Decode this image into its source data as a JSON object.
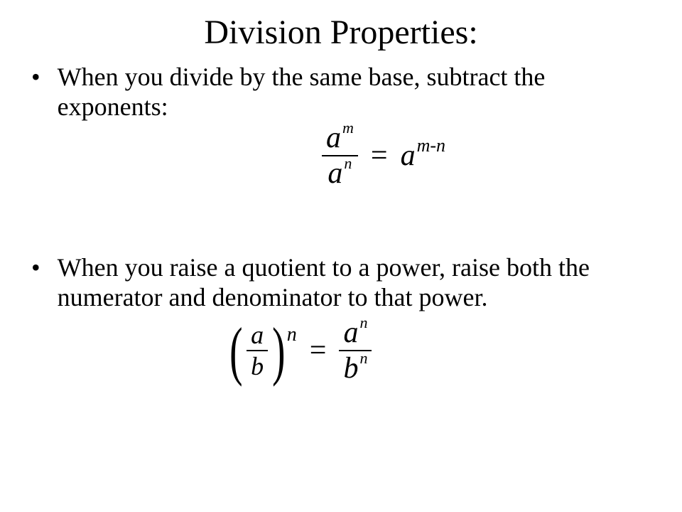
{
  "title": "Division Properties:",
  "bullets": [
    {
      "text": "When you divide by the same base, subtract the exponents:"
    },
    {
      "text": "When you raise a quotient to a power, raise both the numerator and denominator to that power."
    }
  ],
  "formula1": {
    "frac_num_base": "a",
    "frac_num_exp": "m",
    "frac_den_base": "a",
    "frac_den_exp": "n",
    "rhs_base": "a",
    "rhs_exp": "m-n",
    "equals": "="
  },
  "formula2": {
    "lhs_num": "a",
    "lhs_den": "b",
    "lhs_exp": "n",
    "equals": "=",
    "rhs_num_base": "a",
    "rhs_num_exp": "n",
    "rhs_den_base": "b",
    "rhs_den_exp": "n"
  },
  "colors": {
    "text": "#000000",
    "background": "#ffffff"
  }
}
